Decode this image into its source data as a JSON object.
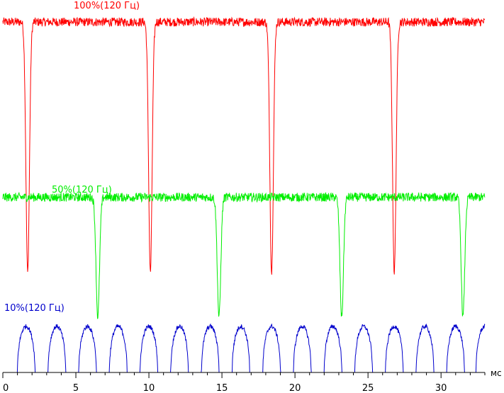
{
  "chart_data": {
    "type": "line",
    "xlabel": "мс",
    "xlim": [
      0,
      33
    ],
    "x_ticks": [
      "0",
      "5",
      "10",
      "15",
      "20",
      "25",
      "30"
    ],
    "x_tick_values": [
      0,
      5,
      10,
      15,
      20,
      25,
      30
    ],
    "grid": false,
    "legend": "inline labels above each trace",
    "series": [
      {
        "name": "100%(120 Гц)",
        "color": "#ff0000",
        "baseline_level": 0.95,
        "dip_level": 0.27,
        "dip_times_ms": [
          1.7,
          10.1,
          18.4,
          26.8
        ],
        "dip_width_ms": 0.5,
        "noise": 0.012
      },
      {
        "name": "50%(120 Гц)",
        "color": "#00ee00",
        "baseline_level": 0.475,
        "dip_level": 0.15,
        "dip_times_ms": [
          6.5,
          14.8,
          23.2,
          31.5
        ],
        "dip_width_ms": 0.5,
        "noise": 0.012
      },
      {
        "name": "10%(120 Гц)",
        "color": "#0000cc",
        "baseline_level": 0.0,
        "pulse_level": 0.125,
        "pulse_times_ms": [
          1.6,
          3.7,
          5.8,
          7.9,
          10.0,
          12.1,
          14.2,
          16.3,
          18.4,
          20.5,
          22.6,
          24.7,
          26.8,
          28.9,
          31.0,
          33.0
        ],
        "pulse_width_ms": 1.2,
        "noise": 0.006
      }
    ]
  }
}
